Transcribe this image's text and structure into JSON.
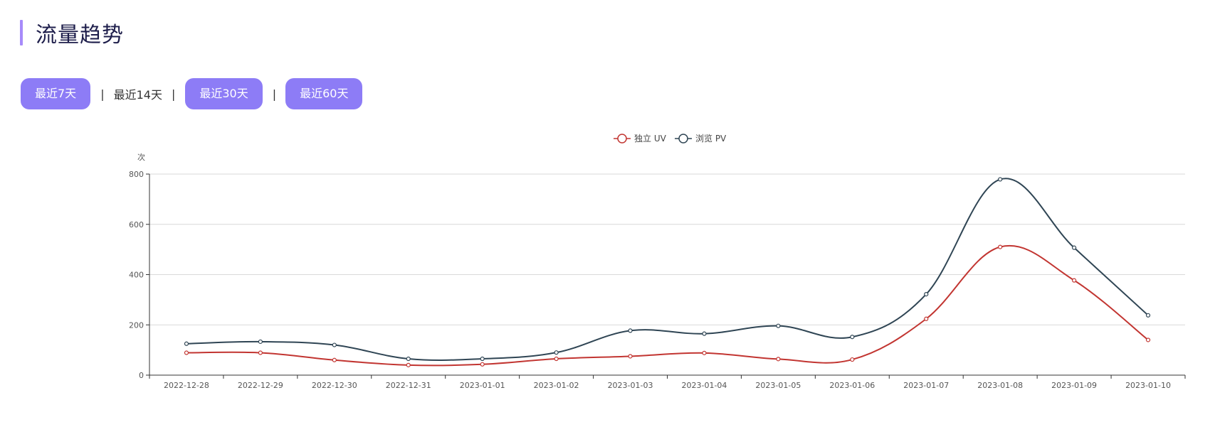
{
  "page": {
    "title": "流量趋势"
  },
  "range_filters": [
    {
      "label": "最近7天",
      "active": true
    },
    {
      "label": "最近14天",
      "active": false
    },
    {
      "label": "最近30天",
      "active": true
    },
    {
      "label": "最近60天",
      "active": true
    }
  ],
  "separator": "|",
  "colors": {
    "accent": "#8d7cf6",
    "title_bar": "#a78bfa",
    "uv": "#c23531",
    "pv": "#2f4554"
  },
  "chart_data": {
    "type": "line",
    "title": "",
    "xlabel": "",
    "ylabel": "次",
    "ylim": [
      0,
      800
    ],
    "yticks": [
      0,
      200,
      400,
      600,
      800
    ],
    "grid": true,
    "legend_position": "top-center",
    "categories": [
      "2022-12-28",
      "2022-12-29",
      "2022-12-30",
      "2022-12-31",
      "2023-01-01",
      "2023-01-02",
      "2023-01-03",
      "2023-01-04",
      "2023-01-05",
      "2023-01-06",
      "2023-01-07",
      "2023-01-08",
      "2023-01-09",
      "2023-01-10"
    ],
    "series": [
      {
        "name": "独立 UV",
        "color": "#c23531",
        "values": [
          89,
          89,
          60,
          40,
          43,
          65,
          75,
          88,
          64,
          62,
          224,
          510,
          377,
          140
        ]
      },
      {
        "name": "浏览 PV",
        "color": "#2f4554",
        "values": [
          125,
          133,
          120,
          65,
          65,
          90,
          177,
          165,
          196,
          152,
          322,
          779,
          507,
          238
        ]
      }
    ]
  }
}
